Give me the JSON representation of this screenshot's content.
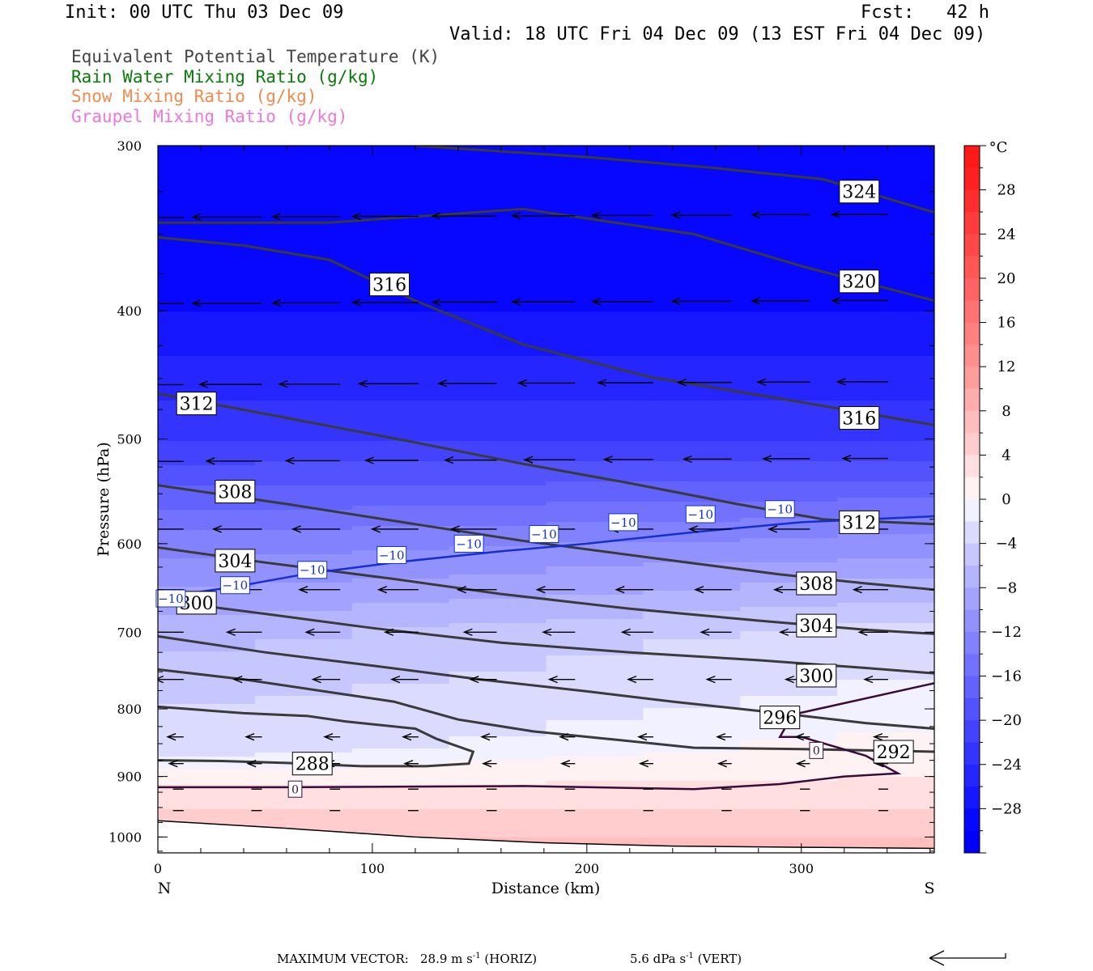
{
  "header": {
    "init": "Init: 00 UTC Thu 03 Dec 09",
    "fcst": "Fcst:   42 h",
    "valid": "Valid: 18 UTC Fri 04 Dec 09 (13 EST Fri 04 Dec 09)"
  },
  "legend": [
    {
      "label": "Equivalent Potential Temperature (K)",
      "color": "#444444"
    },
    {
      "label": "Rain Water Mixing Ratio (g/kg)",
      "color": "#0a7a0a"
    },
    {
      "label": "Snow Mixing Ratio (g/kg)",
      "color": "#f08a50"
    },
    {
      "label": "Graupel Mixing Ratio (g/kg)",
      "color": "#ee77dd"
    }
  ],
  "footer": {
    "max_vector_label": "MAXIMUM VECTOR:",
    "horiz": "28.9 m s",
    "horiz_exp": "-1",
    "horiz_tag": "(HORIZ)",
    "vert": "5.6 dPa s",
    "vert_exp": "-1",
    "vert_tag": "(VERT)"
  },
  "chart_data": {
    "type": "contour-cross-section",
    "xlabel": "Distance (km)",
    "ylabel": "Pressure (hPa)",
    "xlim": [
      0,
      362
    ],
    "ylim": [
      1028,
      300
    ],
    "y_scale": "log-pressure",
    "x_ticks": [
      0,
      100,
      200,
      300
    ],
    "y_ticks": [
      300,
      400,
      500,
      600,
      700,
      800,
      900,
      1000
    ],
    "x_endpoint_labels": {
      "left": "N",
      "right": "S"
    },
    "colorbar": {
      "unit": "°C",
      "tick_labels": [
        "28",
        "24",
        "20",
        "16",
        "12",
        "8",
        "4",
        "0",
        "−4",
        "−8",
        "−12",
        "−16",
        "−20",
        "−24",
        "−28"
      ],
      "tick_values": [
        28,
        24,
        20,
        16,
        12,
        8,
        4,
        0,
        -4,
        -8,
        -12,
        -16,
        -20,
        -24,
        -28
      ],
      "range": [
        -32,
        32
      ],
      "cold_color": "#0000ff",
      "warm_color": "#ff1a1a",
      "neutral_color": "#ffffff"
    },
    "temperature_field_profile": {
      "pressure": [
        300,
        400,
        500,
        600,
        700,
        800,
        850,
        900,
        950,
        1000
      ],
      "temp_c_left": [
        -30,
        -28,
        -22,
        -13,
        -7,
        -4,
        -4,
        1,
        4,
        6
      ],
      "temp_c_right": [
        -30,
        -28,
        -22,
        -11,
        -3,
        -1,
        1,
        2,
        4,
        6
      ]
    },
    "theta_e_contours": [
      {
        "value": 288,
        "label": "288",
        "points": [
          [
            0,
            875
          ],
          [
            30,
            876
          ],
          [
            60,
            879
          ],
          [
            95,
            884
          ],
          [
            125,
            884
          ],
          [
            145,
            880
          ],
          [
            147,
            862
          ],
          [
            130,
            843
          ],
          [
            120,
            828
          ],
          [
            88,
            818
          ],
          [
            70,
            810
          ],
          [
            40,
            806
          ],
          [
            0,
            797
          ]
        ]
      },
      {
        "value": 292,
        "label": "292",
        "points": [
          [
            0,
            747
          ],
          [
            40,
            760
          ],
          [
            110,
            790
          ],
          [
            140,
            815
          ],
          [
            175,
            832
          ],
          [
            210,
            843
          ],
          [
            250,
            856
          ],
          [
            300,
            858
          ],
          [
            362,
            862
          ]
        ]
      },
      {
        "value": 296,
        "label": "296",
        "points": [
          [
            0,
            705
          ],
          [
            50,
            725
          ],
          [
            100,
            742
          ],
          [
            150,
            760
          ],
          [
            200,
            776
          ],
          [
            240,
            790
          ],
          [
            290,
            806
          ],
          [
            330,
            820
          ],
          [
            362,
            828
          ]
        ]
      },
      {
        "value": 300,
        "label": "300",
        "points": [
          [
            0,
            662
          ],
          [
            50,
            678
          ],
          [
            100,
            695
          ],
          [
            160,
            713
          ],
          [
            220,
            725
          ],
          [
            280,
            735
          ],
          [
            330,
            745
          ],
          [
            362,
            752
          ]
        ]
      },
      {
        "value": 304,
        "label": "304",
        "points": [
          [
            0,
            604
          ],
          [
            50,
            620
          ],
          [
            110,
            638
          ],
          [
            160,
            655
          ],
          [
            220,
            672
          ],
          [
            280,
            686
          ],
          [
            330,
            697
          ],
          [
            362,
            702
          ]
        ]
      },
      {
        "value": 308,
        "label": "308",
        "points": [
          [
            0,
            542
          ],
          [
            60,
            560
          ],
          [
            120,
            580
          ],
          [
            170,
            597
          ],
          [
            230,
            615
          ],
          [
            290,
            633
          ],
          [
            330,
            643
          ],
          [
            362,
            650
          ]
        ]
      },
      {
        "value": 312,
        "label": "312",
        "points": [
          [
            0,
            462
          ],
          [
            60,
            482
          ],
          [
            120,
            503
          ],
          [
            170,
            522
          ],
          [
            220,
            540
          ],
          [
            270,
            560
          ],
          [
            310,
            575
          ],
          [
            362,
            580
          ]
        ]
      },
      {
        "value": 316,
        "label": "316",
        "points": [
          [
            0,
            352
          ],
          [
            40,
            357
          ],
          [
            80,
            366
          ],
          [
            120,
            393
          ],
          [
            170,
            424
          ],
          [
            230,
            449
          ],
          [
            290,
            466
          ],
          [
            362,
            488
          ]
        ]
      },
      {
        "value": 320,
        "label": "320",
        "points": [
          [
            0,
            343
          ],
          [
            80,
            343
          ],
          [
            170,
            335
          ],
          [
            250,
            350
          ],
          [
            300,
            370
          ],
          [
            362,
            393
          ]
        ]
      },
      {
        "value": 324,
        "label": "324",
        "points": [
          [
            120,
            300
          ],
          [
            200,
            306
          ],
          [
            260,
            312
          ],
          [
            310,
            318
          ],
          [
            362,
            337
          ]
        ]
      }
    ],
    "isotherms": [
      {
        "value": -10,
        "label": "−10",
        "color": "#1530cc",
        "points": [
          [
            0,
            660
          ],
          [
            40,
            645
          ],
          [
            70,
            632
          ],
          [
            110,
            620
          ],
          [
            160,
            608
          ],
          [
            200,
            600
          ],
          [
            250,
            588
          ],
          [
            300,
            578
          ],
          [
            362,
            572
          ]
        ]
      },
      {
        "value": 0,
        "label": "0",
        "color": "#3a0a3a",
        "points": [
          [
            0,
            917
          ],
          [
            60,
            917
          ],
          [
            170,
            915
          ],
          [
            250,
            920
          ],
          [
            290,
            912
          ],
          [
            320,
            900
          ],
          [
            345,
            895
          ],
          [
            330,
            868
          ],
          [
            300,
            840
          ],
          [
            290,
            840
          ],
          [
            296,
            808
          ],
          [
            362,
            765
          ]
        ]
      }
    ],
    "wind_vectors_note": "Westward (right-to-left) horizontal wind arrows, strongest aloft, weakening toward the surface",
    "max_vector": {
      "horiz_ms": 28.9,
      "vert_dpas": 5.6
    }
  }
}
